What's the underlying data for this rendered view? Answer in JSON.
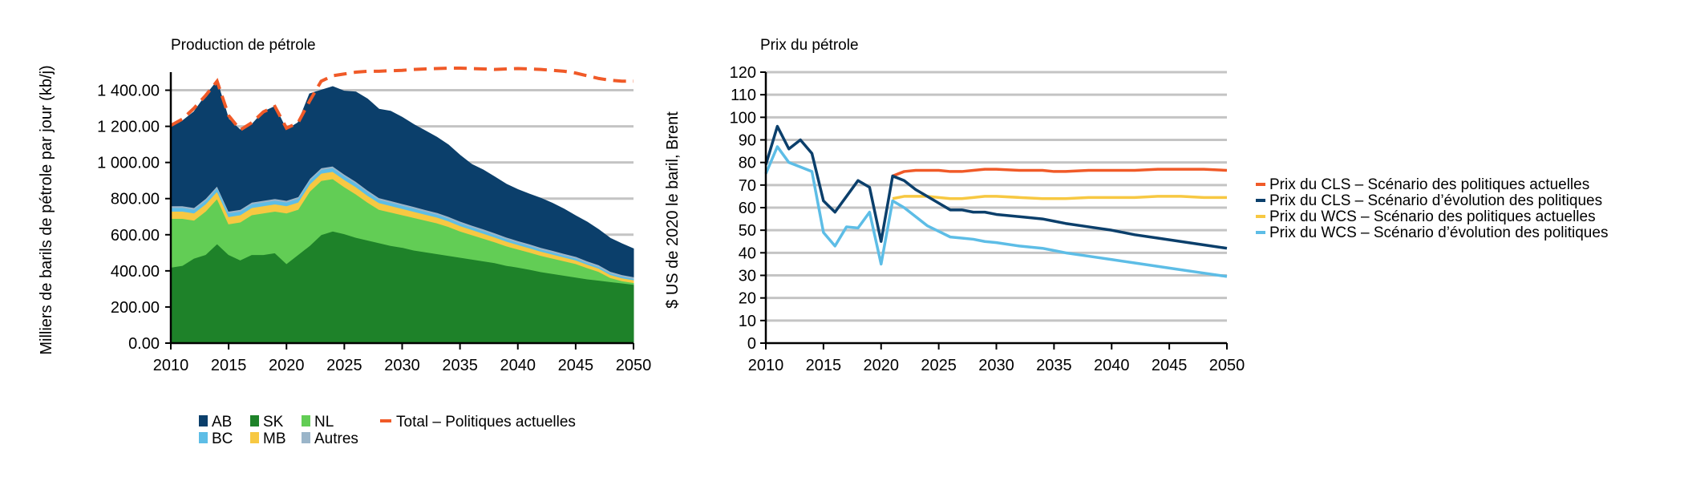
{
  "chart_data": [
    {
      "type": "area",
      "title": "Production de pétrole",
      "ylabel": "Milliers de barils de pétrole par jour (kb/j)",
      "xlabel": "",
      "xlim": [
        2010,
        2050
      ],
      "ylim": [
        0,
        1500
      ],
      "yticks": [
        0,
        200,
        400,
        600,
        800,
        1000,
        1200,
        1400
      ],
      "ytick_labels": [
        "0.00",
        "200.00",
        "400.00",
        "600.00",
        "800.00",
        "1 000.00",
        "1 200.00",
        "1 400.00"
      ],
      "xticks": [
        2010,
        2015,
        2020,
        2025,
        2030,
        2035,
        2040,
        2045,
        2050
      ],
      "grid": true,
      "legend_position": "bottom",
      "x": [
        2010,
        2011,
        2012,
        2013,
        2014,
        2015,
        2016,
        2017,
        2018,
        2019,
        2020,
        2021,
        2022,
        2023,
        2024,
        2025,
        2026,
        2027,
        2028,
        2029,
        2030,
        2031,
        2032,
        2033,
        2034,
        2035,
        2036,
        2037,
        2038,
        2039,
        2040,
        2041,
        2042,
        2043,
        2044,
        2045,
        2046,
        2047,
        2048,
        2049,
        2050
      ],
      "series": [
        {
          "name": "SK",
          "color": "#1e8229",
          "values": [
            420,
            430,
            470,
            490,
            550,
            490,
            460,
            490,
            490,
            500,
            440,
            490,
            540,
            600,
            620,
            605,
            585,
            570,
            555,
            540,
            530,
            515,
            505,
            495,
            485,
            475,
            465,
            455,
            445,
            430,
            420,
            408,
            395,
            385,
            375,
            365,
            355,
            348,
            340,
            333,
            325
          ]
        },
        {
          "name": "NL",
          "color": "#62cd55",
          "values": [
            270,
            260,
            210,
            240,
            250,
            170,
            210,
            220,
            230,
            230,
            280,
            250,
            300,
            300,
            290,
            260,
            240,
            210,
            185,
            185,
            180,
            180,
            175,
            170,
            160,
            145,
            135,
            125,
            115,
            108,
            100,
            95,
            90,
            85,
            80,
            75,
            62,
            48,
            22,
            12,
            10
          ]
        },
        {
          "name": "MB",
          "color": "#f7c842",
          "values": [
            40,
            40,
            40,
            40,
            40,
            40,
            40,
            40,
            40,
            40,
            40,
            40,
            40,
            40,
            40,
            40,
            40,
            38,
            37,
            36,
            35,
            34,
            33,
            32,
            31,
            30,
            29,
            28,
            27,
            26,
            25,
            24,
            23,
            22,
            21,
            20,
            19,
            18,
            17,
            16,
            15
          ]
        },
        {
          "name": "BC",
          "color": "#5dbde6",
          "values": [
            20,
            20,
            20,
            20,
            20,
            20,
            20,
            20,
            20,
            20,
            20,
            20,
            20,
            20,
            20,
            20,
            20,
            19,
            18,
            18,
            17,
            17,
            16,
            16,
            15,
            15,
            14,
            14,
            13,
            13,
            12,
            12,
            11,
            11,
            10,
            10,
            9,
            9,
            8,
            8,
            7
          ]
        },
        {
          "name": "Autres",
          "color": "#9ab5c9",
          "values": [
            10,
            10,
            10,
            10,
            10,
            10,
            10,
            10,
            10,
            10,
            10,
            10,
            10,
            10,
            10,
            10,
            10,
            10,
            10,
            10,
            10,
            10,
            10,
            10,
            10,
            10,
            10,
            10,
            10,
            10,
            10,
            10,
            10,
            10,
            10,
            10,
            10,
            10,
            10,
            10,
            10
          ]
        },
        {
          "name": "AB",
          "color": "#0b3f6b",
          "values": [
            435,
            470,
            530,
            570,
            580,
            510,
            440,
            430,
            490,
            510,
            390,
            410,
            470,
            430,
            440,
            460,
            495,
            505,
            490,
            495,
            478,
            454,
            436,
            417,
            396,
            365,
            337,
            327,
            310,
            293,
            283,
            276,
            273,
            261,
            246,
            225,
            215,
            195,
            183,
            171,
            155
          ]
        }
      ],
      "total_series": {
        "name": "Total – Politiques actuelles",
        "color": "#f05a28",
        "values": [
          1205,
          1240,
          1300,
          1370,
          1450,
          1260,
          1180,
          1220,
          1280,
          1310,
          1190,
          1220,
          1340,
          1450,
          1480,
          1490,
          1500,
          1505,
          1505,
          1508,
          1510,
          1515,
          1518,
          1520,
          1522,
          1522,
          1520,
          1518,
          1515,
          1518,
          1520,
          1518,
          1515,
          1510,
          1505,
          1495,
          1480,
          1465,
          1455,
          1450,
          1450
        ]
      }
    },
    {
      "type": "line",
      "title": "Prix du pétrole",
      "ylabel": "$ US de 2020 le baril, Brent",
      "xlabel": "",
      "xlim": [
        2010,
        2050
      ],
      "ylim": [
        0,
        120
      ],
      "yticks": [
        0,
        10,
        20,
        30,
        40,
        50,
        60,
        70,
        80,
        90,
        100,
        110,
        120
      ],
      "xticks": [
        2010,
        2015,
        2020,
        2025,
        2030,
        2035,
        2040,
        2045,
        2050
      ],
      "grid": true,
      "legend_position": "right",
      "series": [
        {
          "name": "Prix du CLS – Scénario des politiques actuelles",
          "color": "#f05a28",
          "points": [
            [
              2021,
              74
            ],
            [
              2022,
              76
            ],
            [
              2023,
              76.5
            ],
            [
              2024,
              76.5
            ],
            [
              2025,
              76.5
            ],
            [
              2026,
              76
            ],
            [
              2027,
              76
            ],
            [
              2028,
              76.5
            ],
            [
              2029,
              77
            ],
            [
              2030,
              77
            ],
            [
              2032,
              76.5
            ],
            [
              2034,
              76.5
            ],
            [
              2035,
              76
            ],
            [
              2036,
              76
            ],
            [
              2038,
              76.5
            ],
            [
              2040,
              76.5
            ],
            [
              2042,
              76.5
            ],
            [
              2044,
              77
            ],
            [
              2046,
              77
            ],
            [
              2048,
              77
            ],
            [
              2050,
              76.5
            ]
          ]
        },
        {
          "name": "Prix du CLS – Scénario d’évolution des politiques",
          "color": "#0b3f6b",
          "points": [
            [
              2010,
              79
            ],
            [
              2011,
              96
            ],
            [
              2012,
              86
            ],
            [
              2013,
              90
            ],
            [
              2014,
              84
            ],
            [
              2015,
              63
            ],
            [
              2016,
              58
            ],
            [
              2017,
              65
            ],
            [
              2018,
              72
            ],
            [
              2019,
              69
            ],
            [
              2020,
              45
            ],
            [
              2021,
              74
            ],
            [
              2022,
              72
            ],
            [
              2023,
              68
            ],
            [
              2024,
              65
            ],
            [
              2025,
              62
            ],
            [
              2026,
              59
            ],
            [
              2027,
              59
            ],
            [
              2028,
              58
            ],
            [
              2029,
              58
            ],
            [
              2030,
              57
            ],
            [
              2032,
              56
            ],
            [
              2034,
              55
            ],
            [
              2035,
              54
            ],
            [
              2036,
              53
            ],
            [
              2038,
              51.5
            ],
            [
              2040,
              50
            ],
            [
              2042,
              48
            ],
            [
              2044,
              46.5
            ],
            [
              2046,
              45
            ],
            [
              2048,
              43.5
            ],
            [
              2050,
              42
            ]
          ]
        },
        {
          "name": "Prix du WCS – Scénario des politiques actuelles",
          "color": "#f7c842",
          "points": [
            [
              2021,
              64
            ],
            [
              2022,
              65
            ],
            [
              2023,
              65
            ],
            [
              2024,
              65
            ],
            [
              2025,
              64.5
            ],
            [
              2026,
              64
            ],
            [
              2027,
              64
            ],
            [
              2028,
              64.5
            ],
            [
              2029,
              65
            ],
            [
              2030,
              65
            ],
            [
              2032,
              64.5
            ],
            [
              2034,
              64
            ],
            [
              2035,
              64
            ],
            [
              2036,
              64
            ],
            [
              2038,
              64.5
            ],
            [
              2040,
              64.5
            ],
            [
              2042,
              64.5
            ],
            [
              2044,
              65
            ],
            [
              2046,
              65
            ],
            [
              2048,
              64.5
            ],
            [
              2050,
              64.5
            ]
          ]
        },
        {
          "name": "Prix du WCS – Scénario d’évolution des politiques",
          "color": "#5dbde6",
          "points": [
            [
              2010,
              75
            ],
            [
              2011,
              87
            ],
            [
              2012,
              80
            ],
            [
              2013,
              78
            ],
            [
              2014,
              76
            ],
            [
              2015,
              49
            ],
            [
              2016,
              43
            ],
            [
              2017,
              51.5
            ],
            [
              2018,
              51
            ],
            [
              2019,
              58
            ],
            [
              2020,
              35
            ],
            [
              2021,
              63
            ],
            [
              2022,
              60
            ],
            [
              2023,
              56
            ],
            [
              2024,
              52
            ],
            [
              2025,
              49.5
            ],
            [
              2026,
              47
            ],
            [
              2027,
              46.5
            ],
            [
              2028,
              46
            ],
            [
              2029,
              45
            ],
            [
              2030,
              44.5
            ],
            [
              2032,
              43
            ],
            [
              2034,
              42
            ],
            [
              2035,
              41
            ],
            [
              2036,
              40
            ],
            [
              2038,
              38.5
            ],
            [
              2040,
              37
            ],
            [
              2042,
              35.5
            ],
            [
              2044,
              34
            ],
            [
              2046,
              32.5
            ],
            [
              2048,
              31
            ],
            [
              2050,
              29.5
            ]
          ]
        }
      ]
    }
  ]
}
